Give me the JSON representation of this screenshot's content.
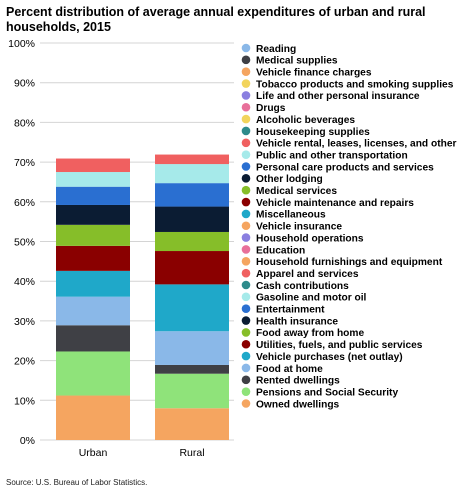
{
  "chart_data": {
    "type": "bar",
    "stacked": true,
    "title": "Percent distribution of average annual expenditures of urban and rural households, 2015",
    "source": "Source: U.S. Bureau of Labor Statistics.",
    "categories": [
      "Urban",
      "Rural"
    ],
    "ylim": [
      0,
      100
    ],
    "yticks": [
      0,
      10,
      20,
      30,
      40,
      50,
      60,
      70,
      80,
      90,
      100
    ],
    "ytick_suffix": "%",
    "grid": true,
    "legend_position": "right",
    "series": [
      {
        "name": "Owned dwellings",
        "color": "#F5A560",
        "values": [
          11.2,
          8.0
        ]
      },
      {
        "name": "Pensions and Social Security",
        "color": "#8FE37A",
        "values": [
          11.1,
          8.7
        ]
      },
      {
        "name": "Rented dwellings",
        "color": "#3F4045",
        "values": [
          6.6,
          2.2
        ]
      },
      {
        "name": "Food at home",
        "color": "#8AB8E8",
        "values": [
          7.2,
          8.5
        ]
      },
      {
        "name": "Vehicle purchases (net outlay)",
        "color": "#1FA8C9",
        "values": [
          6.5,
          11.8
        ]
      },
      {
        "name": "Utilities, fuels, and public services",
        "color": "#8A0000",
        "values": [
          6.3,
          8.4
        ]
      },
      {
        "name": "Food away from home",
        "color": "#86BE29",
        "values": [
          5.3,
          4.8
        ]
      },
      {
        "name": "Health insurance",
        "color": "#0B1C33",
        "values": [
          5.0,
          6.4
        ]
      },
      {
        "name": "Entertainment",
        "color": "#2A6FD1",
        "values": [
          4.6,
          5.9
        ]
      },
      {
        "name": "Gasoline and motor oil",
        "color": "#A6EAEA",
        "values": [
          3.7,
          4.8
        ]
      },
      {
        "name": "Cash contributions",
        "color": "#2E8B8B",
        "values": [
          0.0,
          0.0
        ]
      },
      {
        "name": "Apparel and services",
        "color": "#F06060",
        "values": [
          3.4,
          2.4
        ]
      },
      {
        "name": "Household furnishings and equipment",
        "color": "#F5A560",
        "values": [
          0.0,
          0.0
        ]
      },
      {
        "name": "Education",
        "color": "#E8709A",
        "values": [
          0.0,
          0.0
        ]
      },
      {
        "name": "Household operations",
        "color": "#8A7FE0",
        "values": [
          0.0,
          0.0
        ]
      },
      {
        "name": "Vehicle insurance",
        "color": "#F5A560",
        "values": [
          0.0,
          0.0
        ]
      },
      {
        "name": "Miscellaneous",
        "color": "#1FA8C9",
        "values": [
          0.0,
          0.0
        ]
      },
      {
        "name": "Vehicle maintenance and repairs",
        "color": "#8A0000",
        "values": [
          0.0,
          0.0
        ]
      },
      {
        "name": "Medical services",
        "color": "#86BE29",
        "values": [
          0.0,
          0.0
        ]
      },
      {
        "name": "Other lodging",
        "color": "#0B1C33",
        "values": [
          0.0,
          0.0
        ]
      },
      {
        "name": "Personal care products and services",
        "color": "#2A6FD1",
        "values": [
          0.0,
          0.0
        ]
      },
      {
        "name": "Public and other transportation",
        "color": "#A6EAEA",
        "values": [
          0.0,
          0.0
        ]
      },
      {
        "name": "Vehicle rental, leases, licenses, and other",
        "color": "#F06060",
        "values": [
          0.0,
          0.0
        ]
      },
      {
        "name": "Housekeeping supplies",
        "color": "#2E8B8B",
        "values": [
          0.0,
          0.0
        ]
      },
      {
        "name": "Alcoholic beverages",
        "color": "#F2D45C",
        "values": [
          0.0,
          0.0
        ]
      },
      {
        "name": "Drugs",
        "color": "#E8709A",
        "values": [
          0.0,
          0.0
        ]
      },
      {
        "name": "Life and other personal insurance",
        "color": "#8A7FE0",
        "values": [
          0.0,
          0.0
        ]
      },
      {
        "name": "Tobacco products and smoking supplies",
        "color": "#F2D45C",
        "values": [
          0.0,
          0.0
        ]
      },
      {
        "name": "Vehicle finance charges",
        "color": "#F5A560",
        "values": [
          0.0,
          0.0
        ]
      },
      {
        "name": "Medical supplies",
        "color": "#3F4045",
        "values": [
          0.0,
          0.0
        ]
      },
      {
        "name": "Reading",
        "color": "#8AB8E8",
        "values": [
          0.0,
          0.0
        ]
      }
    ]
  }
}
